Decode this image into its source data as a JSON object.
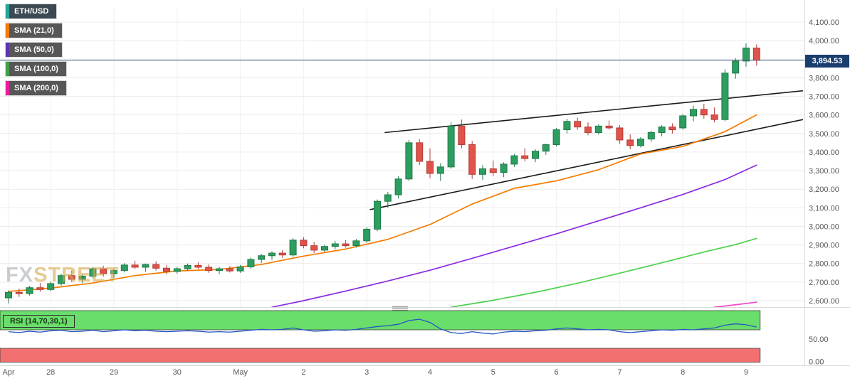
{
  "app": {
    "watermark_fx": "FX",
    "watermark_street": "STREET"
  },
  "legend": {
    "symbol": {
      "label": "ETH/USD",
      "accent": "#26a69a"
    },
    "smas": [
      {
        "label": "SMA (21,0)",
        "accent": "#f57c00",
        "line": "#f57c00"
      },
      {
        "label": "SMA (50,0)",
        "accent": "#5e35b1",
        "line": "#8a2be2"
      },
      {
        "label": "SMA (100,0)",
        "accent": "#43a047",
        "line": "#4cd04c"
      },
      {
        "label": "SMA (200,0)",
        "accent": "#e91e9c",
        "line": "#f048c8"
      }
    ]
  },
  "chart_data": {
    "type": "candlestick",
    "symbol": "ETH/USD",
    "timeframe_hint": "4H",
    "last_price": 3894.53,
    "last_price_label": "3,894.53",
    "ylim": [
      2600,
      4100
    ],
    "grid": true,
    "price_axis": {
      "max": 4100,
      "min": 2600,
      "step": 100,
      "labels": [
        "4,100.00",
        "4,000.00",
        "3,900.00",
        "3,800.00",
        "3,700.00",
        "3,600.00",
        "3,500.00",
        "3,400.00",
        "3,300.00",
        "3,200.00",
        "3,100.00",
        "3,000.00",
        "2,900.00",
        "2,800.00",
        "2,700.00",
        "2,600.00"
      ]
    },
    "x_ticks": [
      {
        "label": "Apr",
        "i": 0
      },
      {
        "label": "28",
        "i": 4
      },
      {
        "label": "29",
        "i": 10
      },
      {
        "label": "30",
        "i": 16
      },
      {
        "label": "May",
        "i": 22
      },
      {
        "label": "2",
        "i": 28
      },
      {
        "label": "3",
        "i": 34
      },
      {
        "label": "4",
        "i": 40
      },
      {
        "label": "5",
        "i": 46
      },
      {
        "label": "6",
        "i": 52
      },
      {
        "label": "7",
        "i": 58
      },
      {
        "label": "8",
        "i": 64
      },
      {
        "label": "9",
        "i": 70
      }
    ],
    "candles": [
      [
        2615,
        2655,
        2585,
        2645
      ],
      [
        2645,
        2665,
        2620,
        2638
      ],
      [
        2638,
        2680,
        2628,
        2670
      ],
      [
        2670,
        2695,
        2648,
        2660
      ],
      [
        2660,
        2702,
        2652,
        2692
      ],
      [
        2692,
        2745,
        2682,
        2735
      ],
      [
        2735,
        2762,
        2700,
        2715
      ],
      [
        2715,
        2742,
        2695,
        2732
      ],
      [
        2732,
        2782,
        2722,
        2772
      ],
      [
        2772,
        2788,
        2730,
        2745
      ],
      [
        2745,
        2772,
        2722,
        2762
      ],
      [
        2762,
        2802,
        2752,
        2792
      ],
      [
        2792,
        2815,
        2770,
        2780
      ],
      [
        2780,
        2800,
        2755,
        2795
      ],
      [
        2795,
        2812,
        2762,
        2775
      ],
      [
        2775,
        2792,
        2742,
        2757
      ],
      [
        2757,
        2782,
        2745,
        2772
      ],
      [
        2772,
        2800,
        2760,
        2790
      ],
      [
        2790,
        2806,
        2770,
        2780
      ],
      [
        2780,
        2795,
        2750,
        2762
      ],
      [
        2762,
        2782,
        2742,
        2772
      ],
      [
        2772,
        2786,
        2752,
        2760
      ],
      [
        2760,
        2792,
        2750,
        2782
      ],
      [
        2782,
        2832,
        2772,
        2822
      ],
      [
        2822,
        2852,
        2802,
        2842
      ],
      [
        2842,
        2866,
        2820,
        2856
      ],
      [
        2856,
        2872,
        2830,
        2846
      ],
      [
        2846,
        2936,
        2836,
        2926
      ],
      [
        2926,
        2942,
        2882,
        2896
      ],
      [
        2896,
        2916,
        2856,
        2872
      ],
      [
        2872,
        2902,
        2862,
        2892
      ],
      [
        2892,
        2922,
        2876,
        2906
      ],
      [
        2906,
        2926,
        2886,
        2896
      ],
      [
        2896,
        2932,
        2886,
        2922
      ],
      [
        2922,
        2995,
        2912,
        2985
      ],
      [
        2985,
        3145,
        2975,
        3135
      ],
      [
        3135,
        3185,
        3100,
        3170
      ],
      [
        3170,
        3270,
        3150,
        3255
      ],
      [
        3255,
        3465,
        3245,
        3450
      ],
      [
        3450,
        3470,
        3330,
        3350
      ],
      [
        3350,
        3420,
        3260,
        3285
      ],
      [
        3285,
        3340,
        3245,
        3320
      ],
      [
        3320,
        3560,
        3310,
        3540
      ],
      [
        3540,
        3575,
        3420,
        3440
      ],
      [
        3440,
        3460,
        3255,
        3280
      ],
      [
        3280,
        3330,
        3250,
        3310
      ],
      [
        3310,
        3355,
        3270,
        3290
      ],
      [
        3290,
        3345,
        3265,
        3335
      ],
      [
        3335,
        3390,
        3320,
        3380
      ],
      [
        3380,
        3420,
        3350,
        3365
      ],
      [
        3365,
        3415,
        3345,
        3405
      ],
      [
        3405,
        3445,
        3385,
        3440
      ],
      [
        3440,
        3530,
        3430,
        3520
      ],
      [
        3520,
        3580,
        3500,
        3565
      ],
      [
        3565,
        3585,
        3520,
        3535
      ],
      [
        3535,
        3560,
        3490,
        3505
      ],
      [
        3505,
        3550,
        3495,
        3540
      ],
      [
        3540,
        3570,
        3520,
        3530
      ],
      [
        3530,
        3545,
        3445,
        3465
      ],
      [
        3465,
        3495,
        3415,
        3435
      ],
      [
        3435,
        3480,
        3425,
        3470
      ],
      [
        3470,
        3515,
        3455,
        3505
      ],
      [
        3505,
        3545,
        3485,
        3535
      ],
      [
        3535,
        3555,
        3500,
        3520
      ],
      [
        3530,
        3605,
        3520,
        3595
      ],
      [
        3595,
        3650,
        3565,
        3630
      ],
      [
        3630,
        3660,
        3580,
        3600
      ],
      [
        3600,
        3640,
        3560,
        3575
      ],
      [
        3575,
        3845,
        3565,
        3825
      ],
      [
        3825,
        3905,
        3795,
        3890
      ],
      [
        3890,
        3985,
        3860,
        3960
      ],
      [
        3960,
        3980,
        3865,
        3894.53
      ]
    ],
    "sma": {
      "21": [
        [
          0,
          2650
        ],
        [
          4,
          2668
        ],
        [
          8,
          2695
        ],
        [
          12,
          2735
        ],
        [
          16,
          2760
        ],
        [
          20,
          2768
        ],
        [
          24,
          2795
        ],
        [
          28,
          2840
        ],
        [
          32,
          2878
        ],
        [
          36,
          2930
        ],
        [
          40,
          3010
        ],
        [
          44,
          3120
        ],
        [
          48,
          3205
        ],
        [
          52,
          3245
        ],
        [
          56,
          3305
        ],
        [
          60,
          3390
        ],
        [
          64,
          3430
        ],
        [
          68,
          3510
        ],
        [
          71,
          3600
        ]
      ],
      "50": [
        [
          25,
          2565
        ],
        [
          28,
          2600
        ],
        [
          32,
          2652
        ],
        [
          36,
          2706
        ],
        [
          40,
          2764
        ],
        [
          44,
          2828
        ],
        [
          48,
          2894
        ],
        [
          52,
          2960
        ],
        [
          56,
          3030
        ],
        [
          60,
          3100
        ],
        [
          64,
          3172
        ],
        [
          68,
          3252
        ],
        [
          71,
          3330
        ]
      ],
      "100": [
        [
          42,
          2565
        ],
        [
          46,
          2602
        ],
        [
          50,
          2645
        ],
        [
          54,
          2694
        ],
        [
          58,
          2748
        ],
        [
          62,
          2804
        ],
        [
          66,
          2862
        ],
        [
          69,
          2902
        ],
        [
          71,
          2935
        ]
      ],
      "200": [
        [
          67,
          2565
        ],
        [
          69,
          2578
        ],
        [
          71,
          2592
        ]
      ]
    },
    "trendlines": [
      {
        "i1": 35.7,
        "v1": 3505,
        "i2": 75.4,
        "v2": 3730
      },
      {
        "i1": 34.3,
        "v1": 3090,
        "i2": 75.4,
        "v2": 3575
      }
    ],
    "rsi": {
      "label": "RSI (14,70,30,1)",
      "upper": 70,
      "lower": 30,
      "axis_labels": [
        "50.00",
        "0.00"
      ],
      "values": [
        66,
        64,
        67,
        65,
        68,
        69,
        66,
        67,
        69,
        66,
        68,
        70,
        68,
        69,
        67,
        66,
        67,
        68,
        67,
        65,
        66,
        65,
        67,
        69,
        71,
        70,
        71,
        74,
        70,
        67,
        68,
        70,
        69,
        71,
        74,
        77,
        79,
        82,
        90,
        93,
        86,
        72,
        64,
        62,
        66,
        63,
        61,
        65,
        67,
        66,
        68,
        69,
        72,
        74,
        72,
        70,
        71,
        70,
        66,
        64,
        66,
        68,
        70,
        69,
        71,
        70,
        72,
        74,
        80,
        83,
        81,
        76
      ]
    },
    "colors": {
      "up": "#2e9e60",
      "up_border": "#1d7a47",
      "down": "#e0534a",
      "down_border": "#b23c35",
      "grid": "#ececec",
      "vgrid": "#f0f0f0",
      "axis_text": "#595959",
      "trend": "#1a1a1a",
      "price_line": "#46618a",
      "tag_bg": "#1a3e6e",
      "rsi_green": "#6ade6a",
      "rsi_red": "#f27070",
      "rsi_line": "#2356c7",
      "border": "#d9d9d9"
    }
  }
}
